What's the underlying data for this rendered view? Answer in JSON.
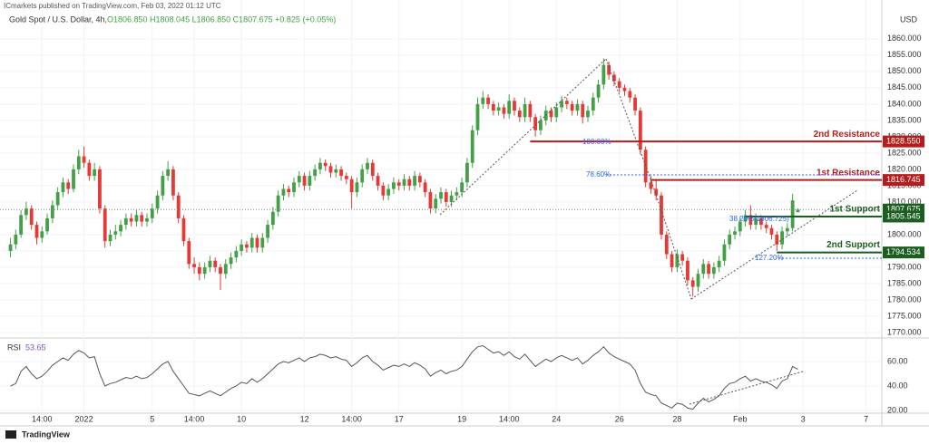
{
  "header": {
    "publisher": "ICmarkets published on TradingView.com, Feb 03, 2022 01:12 UTC",
    "brand": "TradingView"
  },
  "chart_data": [
    {
      "type": "candlestick",
      "title": "Gold Spot / U.S. Dollar, 4h,",
      "ohlc_text": "O1806.850 H1808.045 L1806.850 C1807.675 +0.825 (+0.05%)",
      "unit": "USD",
      "up_color": "#43a047",
      "down_color": "#e53935",
      "grid": true,
      "candles": [
        [
          1795,
          1799,
          1793,
          1797
        ],
        [
          1797,
          1801.5,
          1795.5,
          1800
        ],
        [
          1800,
          1807.5,
          1799,
          1806
        ],
        [
          1806,
          1810,
          1804.5,
          1808
        ],
        [
          1808,
          1809,
          1801.5,
          1803
        ],
        [
          1803,
          1804,
          1797,
          1799
        ],
        [
          1799,
          1802.5,
          1797.5,
          1801
        ],
        [
          1801,
          1806.5,
          1800,
          1805
        ],
        [
          1805,
          1810.5,
          1803.5,
          1809
        ],
        [
          1809,
          1814.5,
          1807.5,
          1813
        ],
        [
          1813,
          1817.5,
          1811.5,
          1816
        ],
        [
          1816,
          1817,
          1812.5,
          1814
        ],
        [
          1814,
          1821.5,
          1813,
          1820
        ],
        [
          1820,
          1826,
          1818.5,
          1824
        ],
        [
          1824,
          1827,
          1820.5,
          1822
        ],
        [
          1822,
          1823,
          1816.5,
          1818
        ],
        [
          1818,
          1822,
          1816.5,
          1820
        ],
        [
          1820,
          1821,
          1806.5,
          1808
        ],
        [
          1808,
          1809,
          1796,
          1798
        ],
        [
          1798,
          1801.5,
          1796.5,
          1800
        ],
        [
          1800,
          1803,
          1798.5,
          1801
        ],
        [
          1801,
          1804.5,
          1799.5,
          1803
        ],
        [
          1803,
          1806.5,
          1801.5,
          1805
        ],
        [
          1805,
          1806.5,
          1802.5,
          1804
        ],
        [
          1804,
          1807.5,
          1802.5,
          1806
        ],
        [
          1806,
          1807,
          1802.5,
          1804
        ],
        [
          1804,
          1806.5,
          1802.5,
          1805
        ],
        [
          1805,
          1809.5,
          1803.5,
          1808
        ],
        [
          1808,
          1813.5,
          1806.5,
          1812
        ],
        [
          1812,
          1819.5,
          1810.5,
          1818
        ],
        [
          1818,
          1822.5,
          1816.5,
          1820
        ],
        [
          1820,
          1821,
          1810.5,
          1812
        ],
        [
          1812,
          1813,
          1803.5,
          1805
        ],
        [
          1805,
          1806,
          1796.5,
          1798
        ],
        [
          1798,
          1799,
          1789.5,
          1791
        ],
        [
          1791,
          1793,
          1788,
          1790
        ],
        [
          1790,
          1791.5,
          1786,
          1788
        ],
        [
          1788,
          1791.5,
          1786.5,
          1790
        ],
        [
          1790,
          1793.5,
          1788.5,
          1792
        ],
        [
          1792,
          1793,
          1788.5,
          1790
        ],
        [
          1790,
          1791,
          1783,
          1788
        ],
        [
          1788,
          1792.5,
          1786.5,
          1791
        ],
        [
          1791,
          1794.5,
          1789.5,
          1793
        ],
        [
          1793,
          1796.5,
          1791.5,
          1795
        ],
        [
          1795,
          1798.5,
          1793.5,
          1797
        ],
        [
          1797,
          1798,
          1794.5,
          1796
        ],
        [
          1796,
          1800.5,
          1794.5,
          1799
        ],
        [
          1799,
          1800,
          1794.5,
          1796
        ],
        [
          1796,
          1800.5,
          1794.5,
          1799
        ],
        [
          1799,
          1804.5,
          1797.5,
          1803
        ],
        [
          1803,
          1808.5,
          1801.5,
          1807
        ],
        [
          1807,
          1813.5,
          1805.5,
          1812
        ],
        [
          1812,
          1815.5,
          1810.5,
          1814
        ],
        [
          1814,
          1815,
          1811.5,
          1813
        ],
        [
          1813,
          1817.5,
          1811.5,
          1816
        ],
        [
          1816,
          1819.5,
          1814.5,
          1818
        ],
        [
          1818,
          1819,
          1813.5,
          1815
        ],
        [
          1815,
          1819.5,
          1813.5,
          1818
        ],
        [
          1818,
          1821.5,
          1816.5,
          1820
        ],
        [
          1820,
          1823.5,
          1818.5,
          1822
        ],
        [
          1822,
          1823,
          1819.5,
          1821
        ],
        [
          1821,
          1822,
          1817.5,
          1819
        ],
        [
          1819,
          1821.5,
          1817.5,
          1820
        ],
        [
          1820,
          1821,
          1816.5,
          1818
        ],
        [
          1818,
          1819,
          1815.5,
          1817
        ],
        [
          1817,
          1818,
          1808,
          1813
        ],
        [
          1813,
          1817.5,
          1811.5,
          1816
        ],
        [
          1816,
          1821.5,
          1814.5,
          1820
        ],
        [
          1820,
          1823.5,
          1818.5,
          1822
        ],
        [
          1822,
          1823,
          1816.5,
          1818
        ],
        [
          1818,
          1819,
          1813.5,
          1815
        ],
        [
          1815,
          1816,
          1810.5,
          1812
        ],
        [
          1812,
          1815.5,
          1810.5,
          1814
        ],
        [
          1814,
          1817.5,
          1812.5,
          1816
        ],
        [
          1816,
          1817,
          1813.5,
          1815
        ],
        [
          1815,
          1818.5,
          1813.5,
          1817
        ],
        [
          1817,
          1818,
          1813.5,
          1815
        ],
        [
          1815,
          1819.5,
          1813.5,
          1818
        ],
        [
          1818,
          1819,
          1814.5,
          1816
        ],
        [
          1816,
          1817,
          1811.5,
          1813
        ],
        [
          1813,
          1814,
          1806.5,
          1808
        ],
        [
          1808,
          1812.5,
          1806.5,
          1811
        ],
        [
          1811,
          1814.5,
          1809.5,
          1813
        ],
        [
          1813,
          1814,
          1808.5,
          1810
        ],
        [
          1810,
          1813.5,
          1808.5,
          1812
        ],
        [
          1812,
          1814.5,
          1810.5,
          1813
        ],
        [
          1813,
          1817.5,
          1811.5,
          1816
        ],
        [
          1816,
          1823.5,
          1814.5,
          1822
        ],
        [
          1822,
          1833.5,
          1820.5,
          1832
        ],
        [
          1832,
          1842,
          1830.5,
          1840
        ],
        [
          1840,
          1844,
          1838.5,
          1842
        ],
        [
          1842,
          1843,
          1838.5,
          1840
        ],
        [
          1840,
          1841,
          1836.5,
          1838
        ],
        [
          1838,
          1840.5,
          1836.5,
          1839
        ],
        [
          1839,
          1840,
          1835.5,
          1837
        ],
        [
          1837,
          1843,
          1835.5,
          1841
        ],
        [
          1841,
          1842,
          1836.5,
          1838
        ],
        [
          1838,
          1839,
          1834.5,
          1836
        ],
        [
          1836,
          1842,
          1834.5,
          1840
        ],
        [
          1840,
          1841,
          1834.5,
          1836
        ],
        [
          1836,
          1837,
          1830,
          1832
        ],
        [
          1832,
          1836.5,
          1830.5,
          1835
        ],
        [
          1835,
          1839.5,
          1833.5,
          1838
        ],
        [
          1838,
          1839,
          1834.5,
          1836
        ],
        [
          1836,
          1840.5,
          1834.5,
          1839
        ],
        [
          1839,
          1842.5,
          1837.5,
          1841
        ],
        [
          1841,
          1842,
          1838.5,
          1840
        ],
        [
          1840,
          1841,
          1836.5,
          1838
        ],
        [
          1838,
          1841.5,
          1836.5,
          1840
        ],
        [
          1840,
          1841,
          1834,
          1836
        ],
        [
          1836,
          1839.5,
          1834.5,
          1838
        ],
        [
          1838,
          1843.5,
          1836.5,
          1842
        ],
        [
          1842,
          1847.5,
          1840.5,
          1846
        ],
        [
          1846,
          1854,
          1844.5,
          1852
        ],
        [
          1852,
          1853,
          1847.5,
          1849
        ],
        [
          1849,
          1850,
          1845.5,
          1847
        ],
        [
          1847,
          1848,
          1843.5,
          1845
        ],
        [
          1845,
          1846,
          1842.5,
          1844
        ],
        [
          1844,
          1845,
          1840.5,
          1842
        ],
        [
          1842,
          1843,
          1836.5,
          1838
        ],
        [
          1838,
          1839,
          1824.5,
          1826
        ],
        [
          1826,
          1827,
          1814.5,
          1816
        ],
        [
          1816,
          1818,
          1812.5,
          1814
        ],
        [
          1814,
          1817,
          1810.5,
          1812
        ],
        [
          1812,
          1813,
          1798.5,
          1800
        ],
        [
          1800,
          1801,
          1792.5,
          1794
        ],
        [
          1794,
          1795,
          1788.5,
          1790
        ],
        [
          1790,
          1795.5,
          1788.5,
          1794
        ],
        [
          1794,
          1795,
          1790.5,
          1792
        ],
        [
          1792,
          1793,
          1784.5,
          1786
        ],
        [
          1786,
          1787,
          1781,
          1784
        ],
        [
          1784,
          1789.5,
          1782.5,
          1788
        ],
        [
          1788,
          1792.5,
          1786.5,
          1791
        ],
        [
          1791,
          1792,
          1786.5,
          1788
        ],
        [
          1788,
          1791.5,
          1786.5,
          1790
        ],
        [
          1790,
          1793.5,
          1788.5,
          1792
        ],
        [
          1792,
          1798.5,
          1790.5,
          1797
        ],
        [
          1797,
          1801.5,
          1795.5,
          1800
        ],
        [
          1800,
          1802.5,
          1798.5,
          1801
        ],
        [
          1801,
          1805.5,
          1799.5,
          1804
        ],
        [
          1804,
          1807.5,
          1802.5,
          1806
        ],
        [
          1806,
          1809,
          1801.5,
          1803
        ],
        [
          1803,
          1806.5,
          1801.5,
          1805
        ],
        [
          1805,
          1806,
          1801.5,
          1803
        ],
        [
          1803,
          1804,
          1800.5,
          1802
        ],
        [
          1802,
          1803,
          1798.5,
          1800
        ],
        [
          1800,
          1801,
          1795,
          1797
        ],
        [
          1797,
          1802.5,
          1795.5,
          1801
        ],
        [
          1801,
          1803.5,
          1799.5,
          1802
        ],
        [
          1802,
          1812.5,
          1801,
          1810.5
        ],
        [
          1806.85,
          1808.045,
          1806.85,
          1807.675
        ]
      ],
      "last_label": "1807.675",
      "last_color": "#1b5e20",
      "ylim": [
        1768.6,
        1871.9
      ],
      "yticks": [
        {
          "value": 1770,
          "label": "1770.000"
        },
        {
          "value": 1775,
          "label": "1775.000"
        },
        {
          "value": 1780,
          "label": "1780.000"
        },
        {
          "value": 1785,
          "label": "1785.000"
        },
        {
          "value": 1790,
          "label": "1790.000"
        },
        {
          "value": 1795,
          "label": "1795.000"
        },
        {
          "value": 1800,
          "label": "1800.000"
        },
        {
          "value": 1805,
          "label": "1805.000"
        },
        {
          "value": 1810,
          "label": "1810.000"
        },
        {
          "value": 1815,
          "label": "1815.000"
        },
        {
          "value": 1820,
          "label": "1820.000"
        },
        {
          "value": 1825,
          "label": "1825.000"
        },
        {
          "value": 1830,
          "label": "1830.000"
        },
        {
          "value": 1835,
          "label": "1835.000"
        },
        {
          "value": 1840,
          "label": "1840.000"
        },
        {
          "value": 1845,
          "label": "1845.000"
        },
        {
          "value": 1850,
          "label": "1850.000"
        },
        {
          "value": 1855,
          "label": "1855.000"
        },
        {
          "value": 1860,
          "label": "1860.000"
        }
      ],
      "xlim": [
        -2,
        166
      ],
      "xticks": [
        {
          "value": 6,
          "label": "14:00"
        },
        {
          "value": 14,
          "label": "2022"
        },
        {
          "value": 27,
          "label": "5"
        },
        {
          "value": 35,
          "label": "14:00"
        },
        {
          "value": 44,
          "label": "10"
        },
        {
          "value": 56,
          "label": "12"
        },
        {
          "value": 65,
          "label": "14:00"
        },
        {
          "value": 74,
          "label": "17"
        },
        {
          "value": 86,
          "label": "19"
        },
        {
          "value": 95,
          "label": "14:00"
        },
        {
          "value": 104,
          "label": "24"
        },
        {
          "value": 116,
          "label": "26"
        },
        {
          "value": 127,
          "label": "28"
        },
        {
          "value": 139,
          "label": "Feb"
        },
        {
          "value": 151,
          "label": "3"
        },
        {
          "value": 163,
          "label": "7"
        }
      ],
      "levels": [
        {
          "label": "2nd Resistance",
          "value": 1828.55,
          "value_label": "1828.550",
          "start": 99,
          "color": "#b71c1c"
        },
        {
          "label": "1st Resistance",
          "value": 1816.745,
          "value_label": "1816.745",
          "start": 122,
          "color": "#b71c1c"
        },
        {
          "label": "1st Support",
          "value": 1805.545,
          "value_label": "1805.545",
          "start": 140,
          "color": "#1b5e20"
        },
        {
          "label": "2nd Support",
          "value": 1794.534,
          "value_label": "1794.534",
          "start": 146,
          "color": "#1b5e20"
        }
      ],
      "fib_labels": [
        "100.00%",
        "78.60%",
        "38.20%(1806.725)",
        "127.20%"
      ]
    },
    {
      "type": "line",
      "name": "RSI",
      "color": "#555555",
      "values": [
        40,
        42,
        52,
        56,
        50,
        46,
        48,
        52,
        57,
        60,
        63,
        61,
        66,
        69,
        67,
        63,
        64,
        50,
        40,
        42,
        43,
        45,
        47,
        46,
        48,
        46,
        47,
        50,
        54,
        58,
        60,
        52,
        46,
        40,
        34,
        33,
        32,
        34,
        36,
        34,
        32,
        35,
        38,
        40,
        43,
        42,
        46,
        43,
        46,
        50,
        54,
        58,
        60,
        59,
        61,
        63,
        60,
        63,
        64,
        66,
        65,
        63,
        64,
        62,
        61,
        56,
        59,
        63,
        65,
        60,
        57,
        53,
        55,
        57,
        56,
        58,
        56,
        59,
        57,
        54,
        48,
        51,
        53,
        50,
        52,
        53,
        56,
        62,
        68,
        72,
        73,
        70,
        67,
        68,
        65,
        68,
        64,
        62,
        66,
        61,
        56,
        59,
        62,
        60,
        63,
        65,
        63,
        61,
        63,
        58,
        61,
        65,
        68,
        72,
        67,
        64,
        62,
        60,
        58,
        53,
        42,
        35,
        33,
        32,
        26,
        24,
        22,
        26,
        25,
        22,
        21,
        26,
        30,
        27,
        29,
        32,
        38,
        42,
        43,
        46,
        48,
        44,
        46,
        44,
        43,
        41,
        38,
        44,
        46,
        56,
        53.65
      ],
      "ylim": [
        18.5,
        77.8
      ],
      "yticks": [
        {
          "value": 20,
          "label": "20.00"
        },
        {
          "value": 40,
          "label": "40.00"
        },
        {
          "value": 60,
          "label": "60.00"
        }
      ]
    }
  ]
}
